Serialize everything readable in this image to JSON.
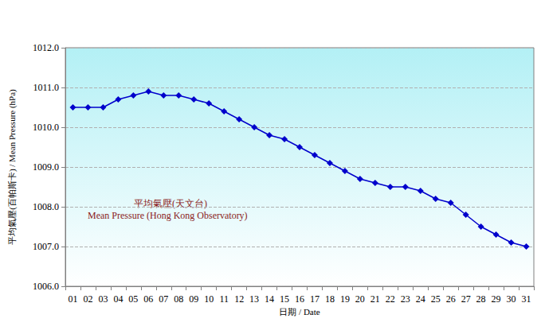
{
  "chart_data": {
    "type": "line",
    "y_label": "平均氣壓(百帕斯卡) / Mean Pressure (hPa)",
    "x_label": "日期 / Date",
    "annotations": [
      "平均氣壓(天文台)",
      "Mean Pressure (Hong Kong Observatory)"
    ],
    "categories": [
      "01",
      "02",
      "03",
      "04",
      "05",
      "06",
      "07",
      "08",
      "09",
      "10",
      "11",
      "12",
      "13",
      "14",
      "15",
      "16",
      "17",
      "18",
      "19",
      "20",
      "21",
      "22",
      "23",
      "24",
      "25",
      "26",
      "27",
      "28",
      "29",
      "30",
      "31"
    ],
    "values": [
      1010.5,
      1010.5,
      1010.5,
      1010.7,
      1010.8,
      1010.9,
      1010.8,
      1010.8,
      1010.7,
      1010.6,
      1010.4,
      1010.2,
      1010.0,
      1009.8,
      1009.7,
      1009.5,
      1009.3,
      1009.1,
      1008.9,
      1008.7,
      1008.6,
      1008.5,
      1008.5,
      1008.4,
      1008.2,
      1008.1,
      1007.8,
      1007.5,
      1007.3,
      1007.1,
      1007.0
    ],
    "color": "#0000CC",
    "marker": "diamond",
    "line_style": "solid",
    "ylim": [
      1006,
      1012
    ],
    "yticks": [
      {
        "value": 1006,
        "label": "1006.0"
      },
      {
        "value": 1007,
        "label": "1007.0"
      },
      {
        "value": 1008,
        "label": "1008.0"
      },
      {
        "value": 1009,
        "label": "1009.0"
      },
      {
        "value": 1010,
        "label": "1010.0"
      },
      {
        "value": 1011,
        "label": "1011.0"
      },
      {
        "value": 1012,
        "label": "1012.0"
      }
    ],
    "grid": true
  }
}
